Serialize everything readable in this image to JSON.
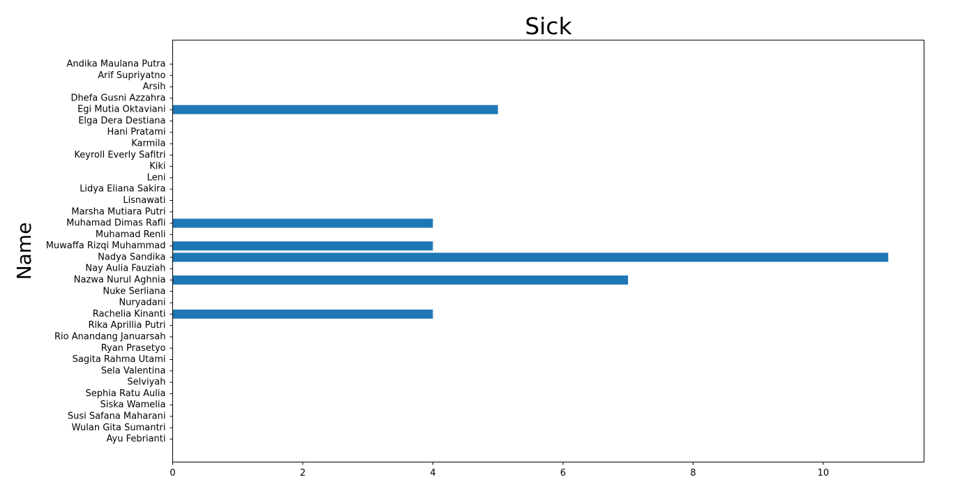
{
  "chart_data": {
    "type": "bar",
    "orientation": "horizontal",
    "title": "Sick",
    "xlabel": "",
    "ylabel": "Name",
    "xlim": [
      0,
      11.55
    ],
    "xticks": [
      0,
      2,
      4,
      6,
      8,
      10
    ],
    "grid": false,
    "bar_color": "#1f77b4",
    "categories": [
      "Andika Maulana Putra",
      "Arif Supriyatno",
      "Arsih",
      "Dhefa Gusni Azzahra",
      "Egi Mutia Oktaviani",
      "Elga Dera Destiana",
      "Hani Pratami",
      "Karmila",
      "Keyroll Everly Safitri",
      "Kiki",
      "Leni",
      "Lidya Eliana Sakira",
      "Lisnawati",
      "Marsha Mutiara Putri",
      "Muhamad Dimas Rafli",
      "Muhamad Renli",
      "Muwaffa Rizqi Muhammad",
      "Nadya Sandika",
      "Nay Aulia Fauziah",
      "Nazwa Nurul Aghnia",
      "Nuke Serliana",
      "Nuryadani",
      "Rachelia Kinanti",
      "Rika Aprillia Putri",
      "Rio Anandang Januarsah",
      "Ryan Prasetyo",
      "Sagita Rahma Utami",
      "Sela Valentina",
      "Selviyah",
      "Sephia Ratu Aulia",
      "Siska Wamelia",
      "Susi Safana Maharani",
      "Wulan Gita Sumantri",
      "Ayu Febrianti"
    ],
    "values": [
      0,
      0,
      0,
      0,
      5,
      0,
      0,
      0,
      0,
      0,
      0,
      0,
      0,
      0,
      4,
      0,
      4,
      11,
      0,
      7,
      0,
      0,
      4,
      0,
      0,
      0,
      0,
      0,
      0,
      0,
      0,
      0,
      0,
      0
    ]
  }
}
